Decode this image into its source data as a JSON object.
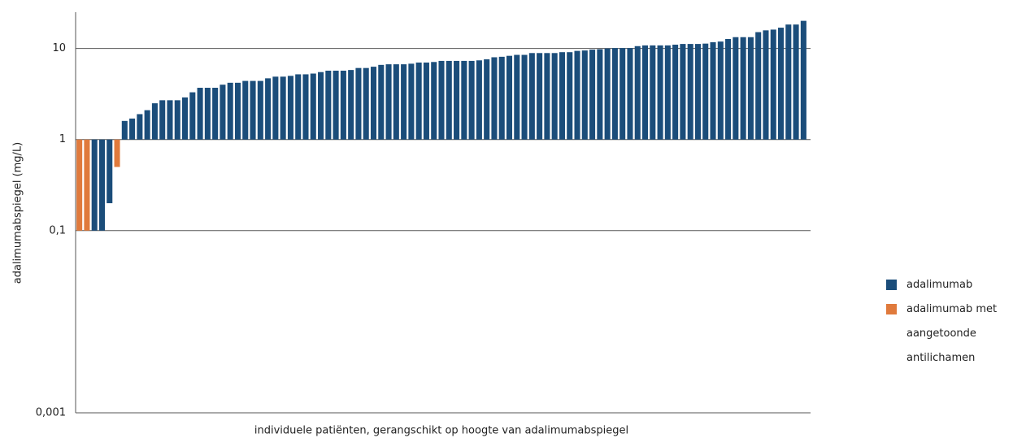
{
  "chart_data": {
    "type": "bar",
    "y_label": "adalimumabspiegel (mg/L)",
    "x_label": "individuele patiënten, gerangschikt op hoogte van adalimumabspiegel",
    "log_scale": true,
    "grid": true,
    "baseline": 1,
    "legend": "right",
    "ylim": [
      0.001,
      25
    ],
    "yticks": [
      {
        "value": 0.001,
        "label": "0,001"
      },
      {
        "value": 0.1,
        "label": "0,1"
      },
      1,
      10
    ],
    "categories": [
      null,
      null,
      null,
      null,
      null,
      null,
      null,
      null,
      null,
      null,
      null,
      null,
      null,
      null,
      null,
      null,
      null,
      null,
      null,
      null,
      null,
      null,
      null,
      null,
      null,
      null,
      null,
      null,
      null,
      null,
      null,
      null,
      null,
      null,
      null,
      null,
      null,
      null,
      null,
      null,
      null,
      null,
      null,
      null,
      null,
      null,
      null,
      null,
      null,
      null,
      null,
      null,
      null,
      null,
      null,
      null,
      null,
      null,
      null,
      null,
      null,
      null,
      null,
      null,
      null,
      null,
      null,
      null,
      null,
      null,
      null,
      null,
      null,
      null,
      null,
      null,
      null,
      null,
      null,
      null,
      null,
      null,
      null,
      null,
      null,
      null,
      null,
      null,
      null,
      null,
      null,
      null,
      null,
      null,
      null,
      null,
      null
    ],
    "series": [
      {
        "name": "adalimumab",
        "color": "#1b4d7a",
        "values": [
          null,
          null,
          0.1,
          0.1,
          0.2,
          null,
          1.6,
          1.7,
          1.9,
          2.1,
          2.5,
          2.7,
          2.7,
          2.7,
          2.9,
          3.3,
          3.7,
          3.7,
          3.7,
          4.0,
          4.2,
          4.2,
          4.4,
          4.4,
          4.4,
          4.7,
          4.9,
          4.9,
          5.0,
          5.2,
          5.2,
          5.3,
          5.5,
          5.7,
          5.7,
          5.7,
          5.8,
          6.1,
          6.1,
          6.3,
          6.6,
          6.7,
          6.7,
          6.7,
          6.8,
          7.0,
          7.0,
          7.1,
          7.3,
          7.3,
          7.3,
          7.3,
          7.3,
          7.4,
          7.6,
          8.0,
          8.1,
          8.3,
          8.5,
          8.5,
          8.9,
          8.9,
          8.9,
          8.9,
          9.1,
          9.1,
          9.4,
          9.5,
          9.7,
          9.8,
          10,
          10.1,
          10.1,
          10.1,
          10.6,
          10.8,
          10.8,
          10.8,
          10.8,
          11,
          11.2,
          11.2,
          11.2,
          11.3,
          11.7,
          11.9,
          12.7,
          13.3,
          13.3,
          13.3,
          15.1,
          15.8,
          16.1,
          16.9,
          18.3,
          18.3,
          20.1
        ]
      },
      {
        "name": "adalimumab met aangetoonde antilichamen",
        "color": "#e07a3c",
        "values": [
          0.1,
          0.1,
          null,
          null,
          null,
          0.5,
          null,
          null,
          null,
          null,
          null,
          null,
          null,
          null,
          null,
          null,
          null,
          null,
          null,
          null,
          null,
          null,
          null,
          null,
          null,
          null,
          null,
          null,
          null,
          null,
          null,
          null,
          null,
          null,
          null,
          null,
          null,
          null,
          null,
          null,
          null,
          null,
          null,
          null,
          null,
          null,
          null,
          null,
          null,
          null,
          null,
          null,
          null,
          null,
          null,
          null,
          null,
          null,
          null,
          null,
          null,
          null,
          null,
          null,
          null,
          null,
          null,
          null,
          null,
          null,
          null,
          null,
          null,
          null,
          null,
          null,
          null,
          null,
          null,
          null,
          null,
          null,
          null,
          null,
          null,
          null,
          null,
          null,
          null,
          null,
          null,
          null,
          null,
          null,
          null,
          null,
          null
        ]
      }
    ]
  }
}
